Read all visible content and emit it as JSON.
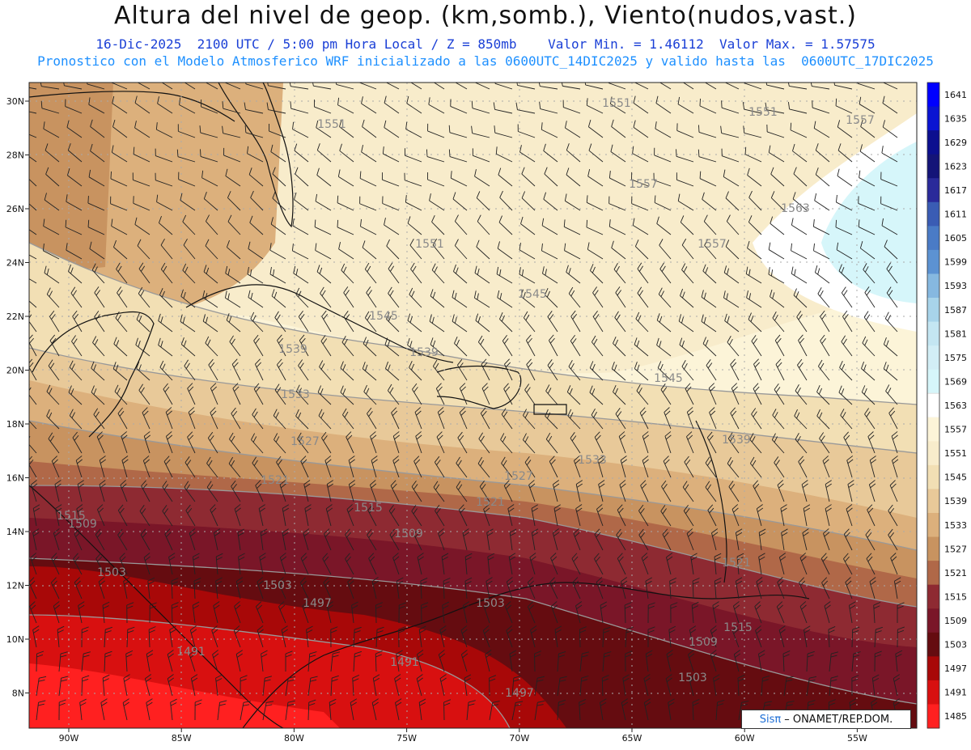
{
  "header": {
    "title": "Altura del nivel de geop. (km,somb.), Viento(nudos,vast.)",
    "line1": "16-Dic-2025  2100 UTC / 5:00 pm Hora Local / Z = 850mb    Valor Min. = 1.46112  Valor Max. = 1.57575",
    "line2": "Pronostico con el Modelo Atmosferico WRF inicializado a las 0600UTC_14DIC2025 y valido hasta las  0600UTC_17DIC2025"
  },
  "axes": {
    "lat_labels": [
      "30N",
      "28N",
      "26N",
      "24N",
      "22N",
      "20N",
      "18N",
      "16N",
      "14N",
      "12N",
      "10N",
      "8N"
    ],
    "lon_labels": [
      "90W",
      "85W",
      "80W",
      "75W",
      "70W",
      "65W",
      "60W",
      "55W"
    ]
  },
  "colorbar": {
    "levels": [
      "1641",
      "1635",
      "1629",
      "1623",
      "1617",
      "1611",
      "1605",
      "1599",
      "1593",
      "1587",
      "1581",
      "1575",
      "1569",
      "1563",
      "1557",
      "1551",
      "1545",
      "1539",
      "1533",
      "1527",
      "1521",
      "1515",
      "1509",
      "1503",
      "1497",
      "1491",
      "1485"
    ],
    "colors": [
      "#0000ff",
      "#0a14d2",
      "#0c0f8f",
      "#141478",
      "#2a2a9a",
      "#3a5cb4",
      "#4a7bc6",
      "#5c92d2",
      "#86b8e0",
      "#a8d4ea",
      "#c4e6f2",
      "#d2eef6",
      "#d6f6fa",
      "#ffffff",
      "#fcf4d8",
      "#f8eccb",
      "#f2dfb4",
      "#e8c999",
      "#dcb07c",
      "#c89360",
      "#b06848",
      "#8e2a32",
      "#7a1628",
      "#650c10",
      "#a80808",
      "#d81010",
      "#ff2020"
    ]
  },
  "contour_labels": [
    "1551",
    "1551",
    "1551",
    "1557",
    "1557",
    "1557",
    "1563",
    "1551",
    "1545",
    "1545",
    "1539",
    "1539",
    "1533",
    "1545",
    "1539",
    "1533",
    "1527",
    "1527",
    "1521",
    "1521",
    "1515",
    "1509",
    "1515",
    "1509",
    "1503",
    "1503",
    "1497",
    "1503",
    "1491",
    "1491",
    "1497",
    "1515",
    "1509",
    "1503",
    "1521"
  ],
  "footer": {
    "brand": "Sisπ",
    "credit": " – ONAMET/REP.DOM."
  }
}
